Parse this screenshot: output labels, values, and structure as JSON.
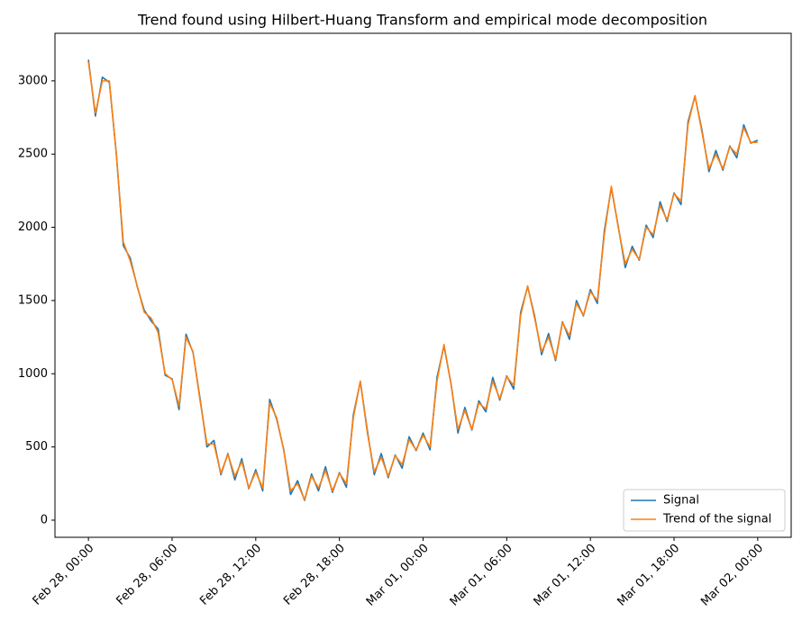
{
  "chart_data": {
    "type": "line",
    "title": "Trend found using Hilbert-Huang Transform and empirical mode decomposition",
    "x": [
      "Feb 28, 00:00",
      "Feb 28, 00:30",
      "Feb 28, 01:00",
      "Feb 28, 01:30",
      "Feb 28, 02:00",
      "Feb 28, 02:30",
      "Feb 28, 03:00",
      "Feb 28, 03:30",
      "Feb 28, 04:00",
      "Feb 28, 04:30",
      "Feb 28, 05:00",
      "Feb 28, 05:30",
      "Feb 28, 06:00",
      "Feb 28, 06:30",
      "Feb 28, 07:00",
      "Feb 28, 07:30",
      "Feb 28, 08:00",
      "Feb 28, 08:30",
      "Feb 28, 09:00",
      "Feb 28, 09:30",
      "Feb 28, 10:00",
      "Feb 28, 10:30",
      "Feb 28, 11:00",
      "Feb 28, 11:30",
      "Feb 28, 12:00",
      "Feb 28, 12:30",
      "Feb 28, 13:00",
      "Feb 28, 13:30",
      "Feb 28, 14:00",
      "Feb 28, 14:30",
      "Feb 28, 15:00",
      "Feb 28, 15:30",
      "Feb 28, 16:00",
      "Feb 28, 16:30",
      "Feb 28, 17:00",
      "Feb 28, 17:30",
      "Feb 28, 18:00",
      "Feb 28, 18:30",
      "Feb 28, 19:00",
      "Feb 28, 19:30",
      "Feb 28, 20:00",
      "Feb 28, 20:30",
      "Feb 28, 21:00",
      "Feb 28, 21:30",
      "Feb 28, 22:00",
      "Feb 28, 22:30",
      "Feb 28, 23:00",
      "Feb 28, 23:30",
      "Mar 01, 00:00",
      "Mar 01, 00:30",
      "Mar 01, 01:00",
      "Mar 01, 01:30",
      "Mar 01, 02:00",
      "Mar 01, 02:30",
      "Mar 01, 03:00",
      "Mar 01, 03:30",
      "Mar 01, 04:00",
      "Mar 01, 04:30",
      "Mar 01, 05:00",
      "Mar 01, 05:30",
      "Mar 01, 06:00",
      "Mar 01, 06:30",
      "Mar 01, 07:00",
      "Mar 01, 07:30",
      "Mar 01, 08:00",
      "Mar 01, 08:30",
      "Mar 01, 09:00",
      "Mar 01, 09:30",
      "Mar 01, 10:00",
      "Mar 01, 10:30",
      "Mar 01, 11:00",
      "Mar 01, 11:30",
      "Mar 01, 12:00",
      "Mar 01, 12:30",
      "Mar 01, 13:00",
      "Mar 01, 13:30",
      "Mar 01, 14:00",
      "Mar 01, 14:30",
      "Mar 01, 15:00",
      "Mar 01, 15:30",
      "Mar 01, 16:00",
      "Mar 01, 16:30",
      "Mar 01, 17:00",
      "Mar 01, 17:30",
      "Mar 01, 18:00",
      "Mar 01, 18:30",
      "Mar 01, 19:00",
      "Mar 01, 19:30",
      "Mar 01, 20:00",
      "Mar 01, 20:30",
      "Mar 01, 21:00",
      "Mar 01, 21:30",
      "Mar 01, 22:00",
      "Mar 01, 22:30",
      "Mar 01, 23:00",
      "Mar 01, 23:30",
      "Mar 02, 00:00"
    ],
    "series": [
      {
        "name": "Signal",
        "color": "#1f77b4",
        "values": [
          3145,
          2760,
          3025,
          2990,
          2505,
          1875,
          1790,
          1595,
          1435,
          1360,
          1305,
          990,
          965,
          755,
          1270,
          1145,
          835,
          500,
          545,
          310,
          455,
          275,
          420,
          215,
          345,
          200,
          825,
          690,
          485,
          175,
          270,
          135,
          315,
          200,
          365,
          190,
          325,
          225,
          720,
          945,
          615,
          310,
          455,
          290,
          445,
          355,
          570,
          475,
          595,
          480,
          975,
          1190,
          935,
          595,
          770,
          615,
          815,
          740,
          975,
          820,
          985,
          895,
          1420,
          1595,
          1395,
          1130,
          1275,
          1090,
          1355,
          1235,
          1500,
          1395,
          1575,
          1480,
          1975,
          2270,
          2005,
          1725,
          1870,
          1775,
          2015,
          1930,
          2175,
          2040,
          2235,
          2155,
          2720,
          2895,
          2665,
          2380,
          2525,
          2390,
          2555,
          2475,
          2700,
          2575,
          2595
        ]
      },
      {
        "name": "Trend of the signal",
        "color": "#ff7f0e",
        "values": [
          3130,
          2780,
          3000,
          3000,
          2500,
          1900,
          1770,
          1600,
          1420,
          1380,
          1280,
          1000,
          960,
          780,
          1250,
          1150,
          820,
          520,
          520,
          320,
          450,
          300,
          400,
          220,
          330,
          220,
          800,
          700,
          480,
          200,
          250,
          140,
          300,
          220,
          340,
          200,
          320,
          250,
          700,
          950,
          600,
          330,
          430,
          300,
          440,
          380,
          550,
          480,
          580,
          500,
          950,
          1200,
          930,
          620,
          750,
          620,
          800,
          760,
          950,
          830,
          980,
          920,
          1400,
          1600,
          1380,
          1150,
          1250,
          1100,
          1350,
          1260,
          1480,
          1400,
          1560,
          1500,
          1950,
          2280,
          2000,
          1750,
          1850,
          1780,
          2000,
          1950,
          2150,
          2050,
          2230,
          2180,
          2700,
          2900,
          2650,
          2400,
          2500,
          2400,
          2550,
          2500,
          2680,
          2580,
          2580
        ]
      }
    ],
    "xticks": [
      "Feb 28, 00:00",
      "Feb 28, 06:00",
      "Feb 28, 12:00",
      "Feb 28, 18:00",
      "Mar 01, 00:00",
      "Mar 01, 06:00",
      "Mar 01, 12:00",
      "Mar 01, 18:00",
      "Mar 02, 00:00"
    ],
    "ylim": [
      -117,
      3325
    ],
    "yticks": [
      0,
      500,
      1000,
      1500,
      2000,
      2500,
      3000
    ],
    "legend": "lower right"
  }
}
